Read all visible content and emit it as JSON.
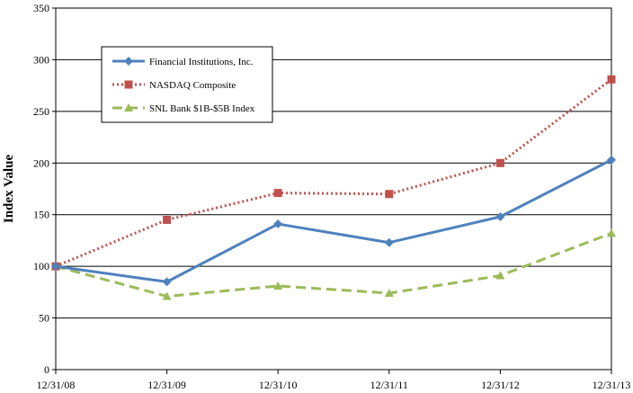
{
  "chart_data": {
    "type": "line",
    "title": "",
    "xlabel": "",
    "ylabel": "Index Value",
    "categories": [
      "12/31/08",
      "12/31/09",
      "12/31/10",
      "12/31/11",
      "12/31/12",
      "12/31/13"
    ],
    "ylim": [
      0,
      350
    ],
    "yticks": [
      0,
      50,
      100,
      150,
      200,
      250,
      300,
      350
    ],
    "grid": true,
    "legend_position": "upper-left",
    "series": [
      {
        "name": "Financial Institutions, Inc.",
        "values": [
          100,
          85,
          141,
          123,
          148,
          203
        ],
        "color": "#4f81bd",
        "style": "solid",
        "marker": "diamond"
      },
      {
        "name": "NASDAQ Composite",
        "values": [
          100,
          145,
          171,
          170,
          200,
          281
        ],
        "color": "#c0504d",
        "style": "dotted",
        "marker": "square"
      },
      {
        "name": "SNL Bank $1B-$5B Index",
        "values": [
          100,
          71,
          81,
          74,
          91,
          132
        ],
        "color": "#9bbb59",
        "style": "dashed",
        "marker": "triangle"
      }
    ]
  }
}
